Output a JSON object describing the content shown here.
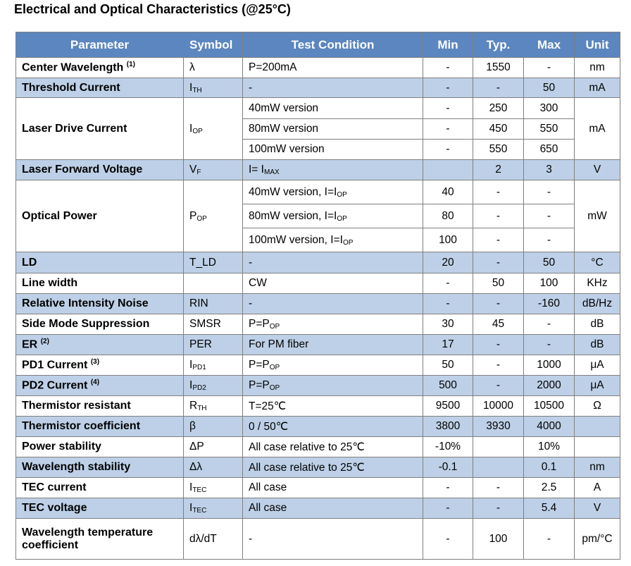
{
  "title": "Electrical and Optical Characteristics (@25°C)",
  "headers": {
    "parameter": "Parameter",
    "symbol": "Symbol",
    "condition": "Test Condition",
    "min": "Min",
    "typ": "Typ.",
    "max": "Max",
    "unit": "Unit"
  },
  "rows": {
    "center_wavelength": {
      "param": "Center Wavelength",
      "note": "(1)",
      "symbol": "λ",
      "cond": "P=200mA",
      "min": "-",
      "typ": "1550",
      "max": "-",
      "unit": "nm"
    },
    "threshold_current": {
      "param": "Threshold Current",
      "sym_main": "I",
      "sym_sub": "TH",
      "cond": "-",
      "min": "-",
      "typ": "-",
      "max": "50",
      "unit": "mA"
    },
    "laser_drive": {
      "param": "Laser Drive Current",
      "sym_main": "I",
      "sym_sub": "OP",
      "unit": "mA",
      "sub": [
        {
          "cond": "40mW version",
          "min": "-",
          "typ": "250",
          "max": "300"
        },
        {
          "cond": "80mW version",
          "min": "-",
          "typ": "450",
          "max": "550"
        },
        {
          "cond": "100mW version",
          "min": "-",
          "typ": "550",
          "max": "650"
        }
      ]
    },
    "forward_voltage": {
      "param": "Laser Forward Voltage",
      "sym_main": "V",
      "sym_sub": "F",
      "cond_main": "I= I",
      "cond_sub": "MAX",
      "min": "",
      "typ": "2",
      "max": "3",
      "unit": "V"
    },
    "optical_power": {
      "param": "Optical Power",
      "sym_main": "P",
      "sym_sub": "OP",
      "unit": "mW",
      "sub": [
        {
          "cond": "40mW version, I=I",
          "cond_sub": "OP",
          "min": "40",
          "typ": "-",
          "max": "-"
        },
        {
          "cond": "80mW version, I=I",
          "cond_sub": "OP",
          "min": "80",
          "typ": "-",
          "max": "-"
        },
        {
          "cond": "100mW version, I=I",
          "cond_sub": "OP",
          "min": "100",
          "typ": "-",
          "max": "-"
        }
      ]
    },
    "ld": {
      "param": "LD",
      "symbol": "T_LD",
      "cond": "-",
      "min": "20",
      "typ": "-",
      "max": "50",
      "unit": "°C"
    },
    "line_width": {
      "param": "Line width",
      "symbol": "",
      "cond": "CW",
      "min": "-",
      "typ": "50",
      "max": "100",
      "unit": "KHz"
    },
    "rin": {
      "param": "Relative Intensity Noise",
      "symbol": "RIN",
      "cond": "-",
      "min": "-",
      "typ": "-",
      "max": "-160",
      "unit": "dB/Hz"
    },
    "smsr": {
      "param": "Side Mode Suppression",
      "symbol": "SMSR",
      "cond_main": "P=P",
      "cond_sub": "OP",
      "min": "30",
      "typ": "45",
      "max": "-",
      "unit": "dB"
    },
    "er": {
      "param": "ER",
      "note": "(2)",
      "symbol": "PER",
      "cond": "For PM fiber",
      "min": "17",
      "typ": "-",
      "max": "-",
      "unit": "dB"
    },
    "pd1": {
      "param": "PD1 Current",
      "note": "(3)",
      "sym_main": "I",
      "sym_sub": "PD1",
      "cond_main": "P=P",
      "cond_sub": "OP",
      "min": "50",
      "typ": "-",
      "max": "1000",
      "unit": "μA"
    },
    "pd2": {
      "param": "PD2 Current",
      "note": "(4)",
      "sym_main": "I",
      "sym_sub": "PD2",
      "cond_main": "P=P",
      "cond_sub": "OP",
      "min": "500",
      "typ": "-",
      "max": "2000",
      "unit": "μA"
    },
    "thermistor_res": {
      "param": "Thermistor resistant",
      "sym_main": "R",
      "sym_sub": "TH",
      "cond": "T=25℃",
      "min": "9500",
      "typ": "10000",
      "max": "10500",
      "unit": "Ω"
    },
    "thermistor_coef": {
      "param": "Thermistor coefficient",
      "symbol": "β",
      "cond": "0 / 50℃",
      "min": "3800",
      "typ": "3930",
      "max": "4000",
      "unit": ""
    },
    "power_stability": {
      "param": "Power stability",
      "symbol": "ΔP",
      "cond": "All case relative to 25℃",
      "min": "-10%",
      "typ": "",
      "max": "10%",
      "unit": ""
    },
    "wavelength_stability": {
      "param": "Wavelength stability",
      "symbol": "Δλ",
      "cond": "All case relative to 25℃",
      "min": "-0.1",
      "typ": "",
      "max": "0.1",
      "unit": "nm"
    },
    "tec_current": {
      "param": "TEC current",
      "sym_main": "I",
      "sym_sub": "TEC",
      "cond": "All case",
      "min": "-",
      "typ": "-",
      "max": "2.5",
      "unit": "A"
    },
    "tec_voltage": {
      "param": "TEC voltage",
      "sym_main": "I",
      "sym_sub": "TEC",
      "cond": "All case",
      "min": "-",
      "typ": "-",
      "max": "5.4",
      "unit": "V"
    },
    "wl_temp_coef": {
      "param_line1": "Wavelength temperature",
      "param_line2": "coefficient",
      "symbol": "dλ/dT",
      "cond": "-",
      "min": "-",
      "typ": "100",
      "max": "-",
      "unit": "pm/°C"
    }
  }
}
